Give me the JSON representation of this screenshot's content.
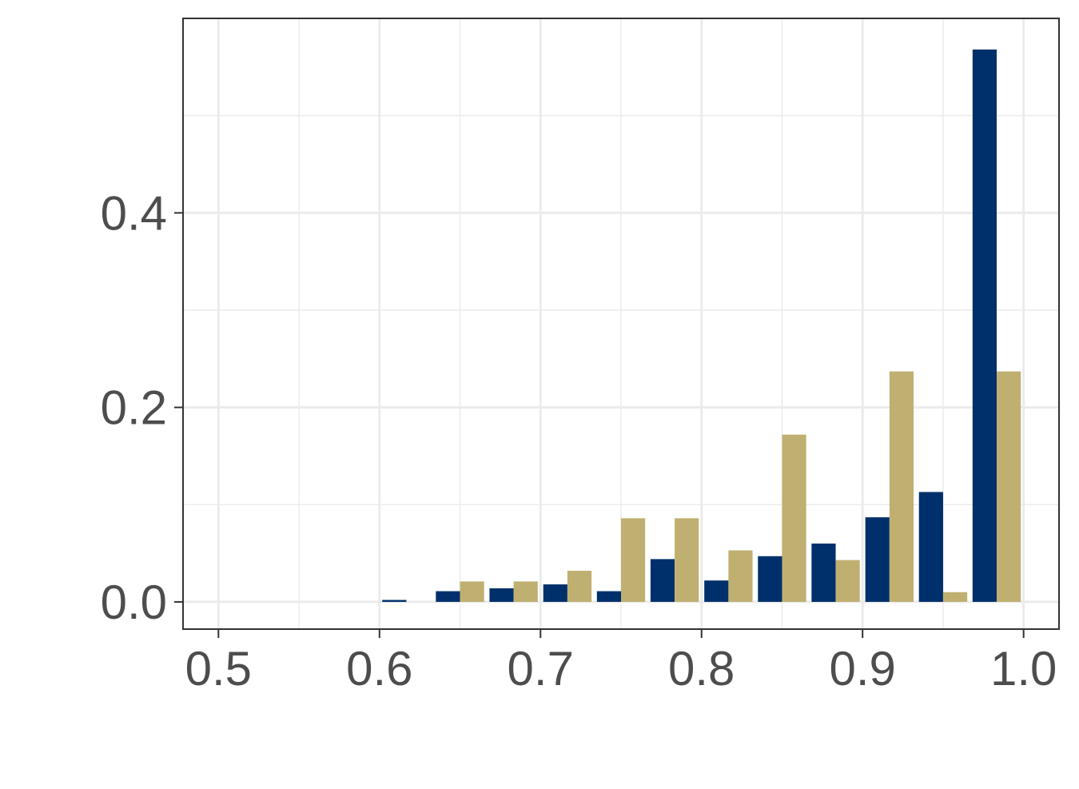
{
  "chart_data": {
    "type": "bar",
    "title": "",
    "xlabel": "",
    "ylabel": "",
    "xlim": [
      0.478,
      1.022
    ],
    "ylim": [
      -0.028,
      0.6
    ],
    "x_ticks": [
      "0.5",
      "0.6",
      "0.7",
      "0.8",
      "0.9",
      "1.0"
    ],
    "x_tick_values": [
      0.5,
      0.6,
      0.7,
      0.8,
      0.9,
      1.0
    ],
    "y_ticks": [
      "0.0",
      "0.2",
      "0.4"
    ],
    "y_tick_values": [
      0.0,
      0.2,
      0.4
    ],
    "grid": true,
    "bin_centers": [
      0.6167,
      0.65,
      0.6833,
      0.7167,
      0.75,
      0.7833,
      0.8167,
      0.85,
      0.8833,
      0.9167,
      0.95,
      0.9833
    ],
    "bin_width": 0.0333,
    "series": [
      {
        "color": "#00306b",
        "values": [
          0.002,
          0.011,
          0.014,
          0.018,
          0.011,
          0.044,
          0.022,
          0.047,
          0.06,
          0.087,
          0.113,
          0.568
        ]
      },
      {
        "color": "#bfb071",
        "values": [
          0.0,
          0.021,
          0.021,
          0.032,
          0.086,
          0.086,
          0.053,
          0.172,
          0.043,
          0.237,
          0.01,
          0.237
        ]
      }
    ]
  }
}
